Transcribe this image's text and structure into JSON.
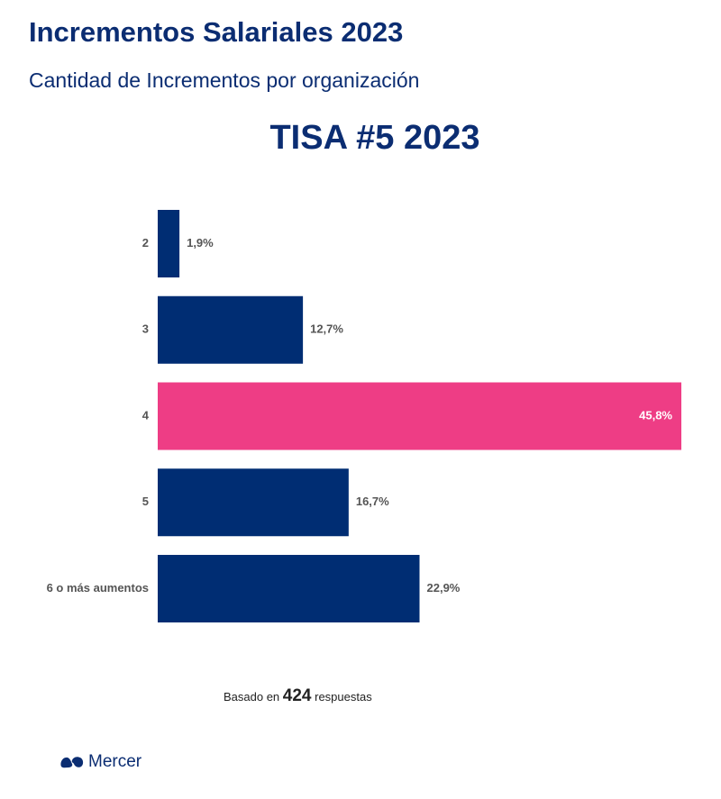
{
  "header": {
    "title": "Incrementos Salariales 2023",
    "subtitle": "Cantidad de Incrementos por organización"
  },
  "chart_data": {
    "type": "bar",
    "orientation": "horizontal",
    "title": "TISA #5 2023",
    "categories": [
      "2",
      "3",
      "4",
      "5",
      "6 o más aumentos"
    ],
    "values": [
      1.9,
      12.7,
      45.8,
      16.7,
      22.9
    ],
    "value_labels": [
      "1,9%",
      "12,7%",
      "45,8%",
      "16,7%",
      "22,9%"
    ],
    "highlight_index": 2,
    "colors": {
      "bar": "#002d73",
      "highlight": "#ee3d85",
      "label": "#555555",
      "highlight_label": "#ffffff"
    },
    "xlim": [
      0,
      45.8
    ],
    "grid": false
  },
  "footnote": {
    "prefix": "Basado en",
    "count": "424",
    "suffix": "respuestas"
  },
  "brand": {
    "logo_icon": "mercer-logo-icon",
    "name": "Mercer"
  }
}
